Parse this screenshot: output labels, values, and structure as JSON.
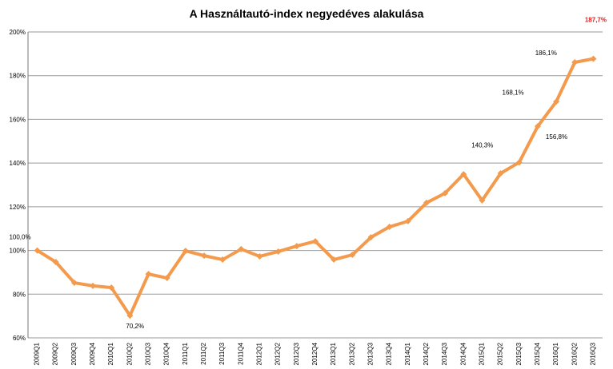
{
  "chart_data": {
    "type": "line",
    "title": "A Használtautó-index negyedéves alakulása",
    "categories": [
      "2009Q1",
      "2009Q2",
      "2009Q3",
      "2009Q4",
      "2010Q1",
      "2010Q2",
      "2010Q3",
      "2010Q4",
      "2011Q1",
      "2011Q2",
      "2011Q3",
      "2011Q4",
      "2012Q1",
      "2012Q2",
      "2012Q3",
      "2012Q4",
      "2013Q1",
      "2013Q2",
      "2013Q3",
      "2013Q4",
      "2014Q1",
      "2014Q2",
      "2014Q3",
      "2014Q4",
      "2015Q1",
      "2015Q2",
      "2015Q3",
      "2015Q4",
      "2016Q1",
      "2016Q2",
      "2016Q3"
    ],
    "values": [
      100.0,
      94.7,
      85.2,
      83.8,
      83.0,
      70.2,
      89.2,
      87.4,
      99.8,
      97.6,
      95.8,
      100.6,
      97.3,
      99.5,
      102.0,
      104.2,
      95.8,
      98.0,
      106.0,
      110.8,
      113.4,
      121.8,
      126.2,
      134.9,
      122.9,
      135.3,
      140.3,
      156.8,
      168.1,
      186.1,
      187.7
    ],
    "value_labels": [
      "100,0%",
      null,
      null,
      null,
      null,
      "70,2%",
      null,
      null,
      null,
      null,
      null,
      null,
      null,
      null,
      null,
      null,
      null,
      null,
      null,
      null,
      null,
      null,
      null,
      null,
      null,
      null,
      "140,3%",
      "156,8%",
      "168,1%",
      "186,1%",
      "187,7%"
    ],
    "color": "#f39a4c",
    "ylim": [
      60,
      200
    ],
    "yticks": [
      {
        "value": 60,
        "label": "60%"
      },
      {
        "value": 80,
        "label": "80%"
      },
      {
        "value": 100,
        "label": "100%"
      },
      {
        "value": 120,
        "label": "120%"
      },
      {
        "value": 140,
        "label": "140%"
      },
      {
        "value": 160,
        "label": "160%"
      },
      {
        "value": 180,
        "label": "180%"
      },
      {
        "value": 200,
        "label": "200%"
      }
    ],
    "grid": true
  }
}
